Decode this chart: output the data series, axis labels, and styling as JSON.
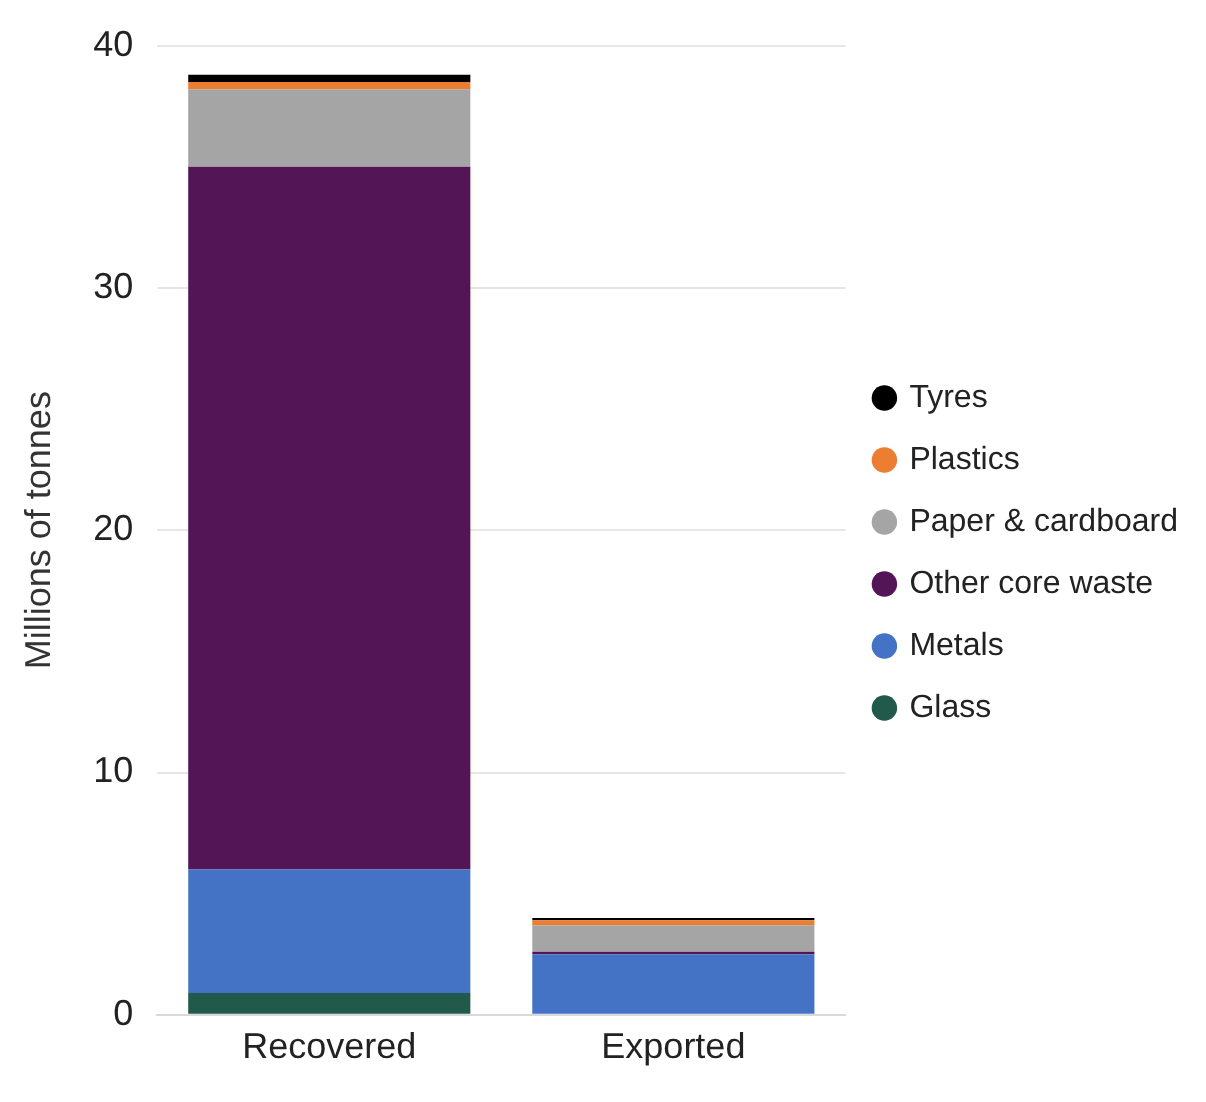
{
  "chart_data": {
    "type": "bar",
    "stacked": true,
    "ylabel": "Millions of tonnes",
    "categories": [
      "Recovered",
      "Exported"
    ],
    "series": [
      {
        "name": "Glass",
        "color": "#215a4a",
        "values": [
          0.9,
          0
        ]
      },
      {
        "name": "Metals",
        "color": "#4472c4",
        "values": [
          5.1,
          2.5
        ]
      },
      {
        "name": "Other core waste",
        "color": "#541556",
        "values": [
          29.0,
          0.1
        ]
      },
      {
        "name": "Paper & cardboard",
        "color": "#a5a5a5",
        "values": [
          3.2,
          1.1
        ]
      },
      {
        "name": "Plastics",
        "color": "#ed7d31",
        "values": [
          0.3,
          0.2
        ]
      },
      {
        "name": "Tyres",
        "color": "#000000",
        "values": [
          0.3,
          0.1
        ]
      }
    ],
    "ylim": [
      0,
      40
    ],
    "yticks": [
      0,
      10,
      20,
      30,
      40
    ],
    "grid": "y",
    "legend": "right"
  }
}
